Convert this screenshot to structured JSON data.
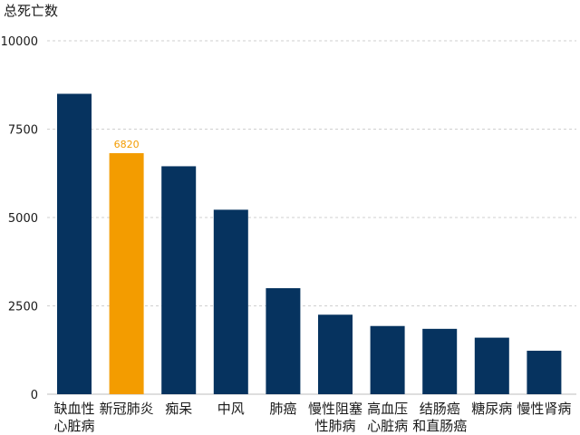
{
  "chart_data": {
    "type": "bar",
    "title": "",
    "xlabel": "",
    "ylabel": "总死亡数",
    "ylim": [
      0,
      10000
    ],
    "yticks": [
      0,
      2500,
      5000,
      7500,
      10000
    ],
    "grid": true,
    "categories": [
      [
        "缺血性",
        "心脏病"
      ],
      [
        "新冠肺炎"
      ],
      [
        "痴呆"
      ],
      [
        "中风"
      ],
      [
        "肺癌"
      ],
      [
        "慢性阻塞",
        "性肺病"
      ],
      [
        "高血压",
        "心脏病"
      ],
      [
        "结肠癌",
        "和直肠癌"
      ],
      [
        "糖尿病"
      ],
      [
        "慢性肾病"
      ]
    ],
    "values": [
      8500,
      6820,
      6450,
      5220,
      3000,
      2250,
      1930,
      1850,
      1600,
      1230
    ],
    "highlight_index": 1,
    "data_labels": [
      {
        "index": 1,
        "text": "6820"
      }
    ],
    "colors": {
      "bar": "#06335f",
      "highlight": "#f39c00",
      "highlight_label": "#f39c00"
    }
  }
}
